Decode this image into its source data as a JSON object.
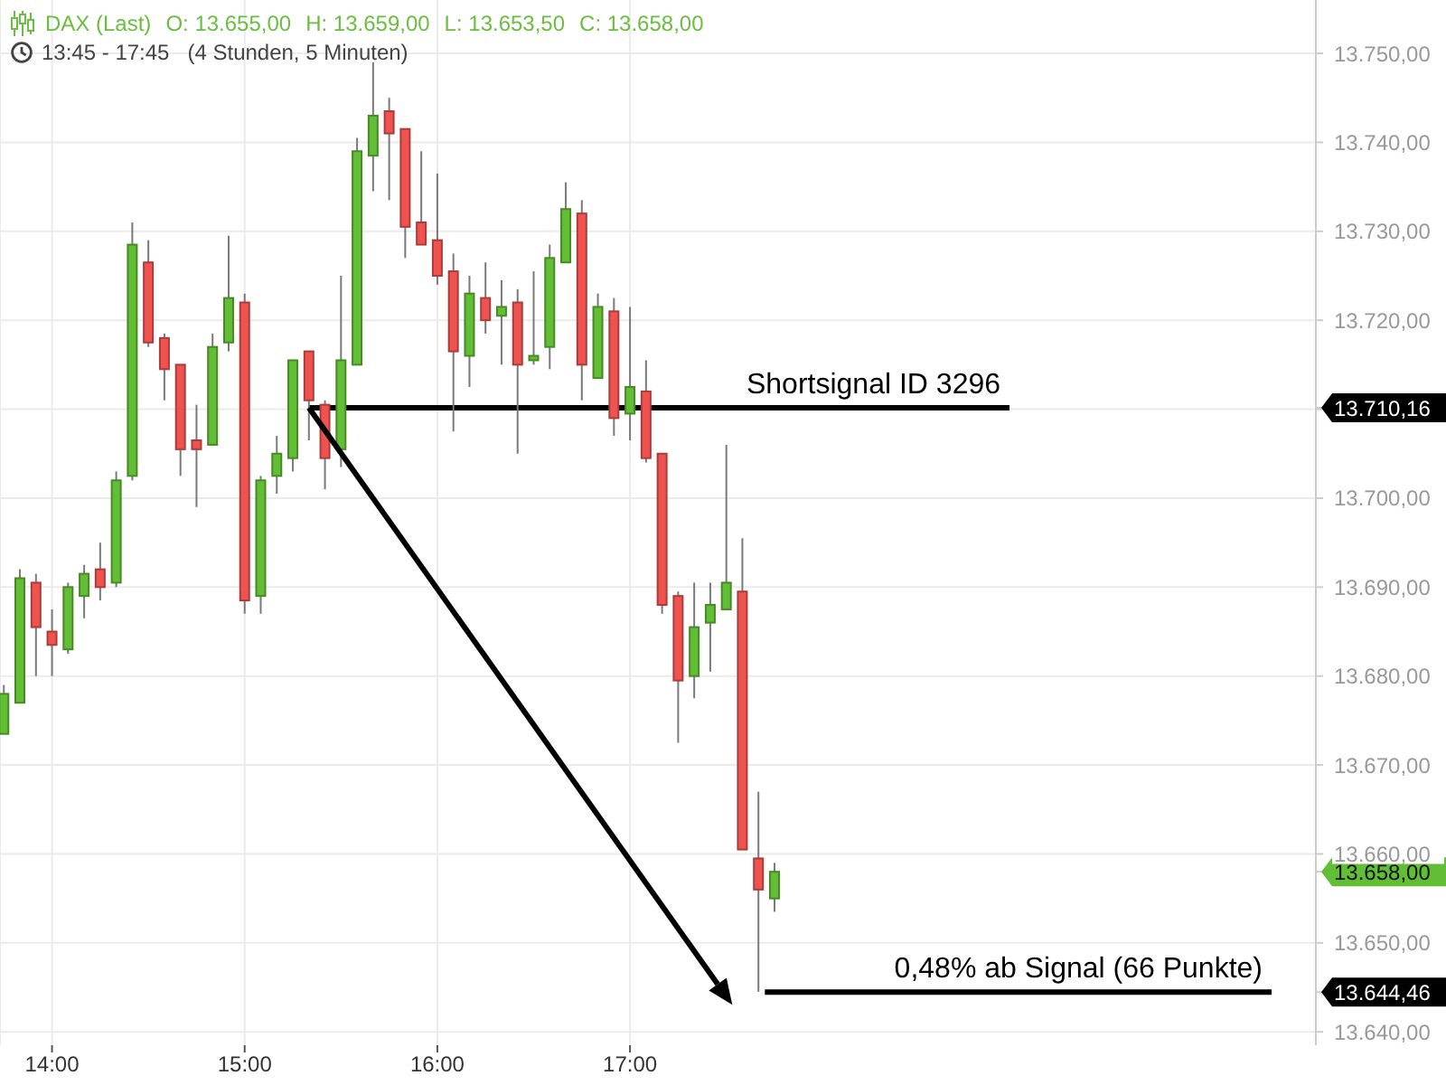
{
  "chart_data": {
    "type": "candlestick",
    "title": "DAX (Last)",
    "subtitle": "13:45 - 17:45   (4 Stunden, 5 Minuten)",
    "annotations": [
      "O: 13.655,00",
      "H: 13.659,00",
      "L: 13.653,50",
      "C: 13.658,00"
    ],
    "x": [
      13.75,
      13.8333,
      13.9167,
      14,
      14.0833,
      14.1667,
      14.25,
      14.3333,
      14.4167,
      14.5,
      14.5833,
      14.6667,
      14.75,
      14.8333,
      14.9167,
      15,
      15.0833,
      15.1667,
      15.25,
      15.3333,
      15.4167,
      15.5,
      15.5833,
      15.6667,
      15.75,
      15.8333,
      15.9167,
      16,
      16.0833,
      16.1667,
      16.25,
      16.3333,
      16.4167,
      16.5,
      16.5833,
      16.6667,
      16.75,
      16.8333,
      16.9167,
      17,
      17.0833,
      17.1667,
      17.25,
      17.3333,
      17.4167,
      17.5,
      17.5833,
      17.6667,
      17.75
    ],
    "ohlc": [
      [
        13673.5,
        13679,
        13673.5,
        13678
      ],
      [
        13677,
        13692,
        13677,
        13691
      ],
      [
        13690.5,
        13691.5,
        13680,
        13685.5
      ],
      [
        13685,
        13687.5,
        13680,
        13683.5
      ],
      [
        13683,
        13690.5,
        13682.5,
        13690
      ],
      [
        13689,
        13692.5,
        13686.5,
        13691.5
      ],
      [
        13692,
        13695,
        13688.5,
        13690
      ],
      [
        13690.5,
        13703,
        13690,
        13702
      ],
      [
        13702.5,
        13731,
        13702,
        13728.5
      ],
      [
        13726.5,
        13729,
        13717,
        13717.5
      ],
      [
        13718,
        13718.5,
        13711,
        13714.5
      ],
      [
        13715,
        13715,
        13702.5,
        13705.5
      ],
      [
        13706.5,
        13710.5,
        13699,
        13705.5
      ],
      [
        13706,
        13718.5,
        13706,
        13717
      ],
      [
        13717.5,
        13729.5,
        13716.5,
        13722.5
      ],
      [
        13722,
        13723,
        13687,
        13688.5
      ],
      [
        13689,
        13702.5,
        13687,
        13702
      ],
      [
        13702.5,
        13707,
        13700.5,
        13705
      ],
      [
        13704.5,
        13715.5,
        13703,
        13715.5
      ],
      [
        13716.5,
        13716.5,
        13706.5,
        13711
      ],
      [
        13710.5,
        13711,
        13701,
        13704.5
      ],
      [
        13705.5,
        13725,
        13703.5,
        13715.5
      ],
      [
        13715,
        13740.5,
        13715,
        13739
      ],
      [
        13738.5,
        13749,
        13734.5,
        13743
      ],
      [
        13743.5,
        13745,
        13733.5,
        13741
      ],
      [
        13741.5,
        13741.5,
        13727,
        13730.5
      ],
      [
        13731,
        13739,
        13728.5,
        13728.5
      ],
      [
        13729,
        13736.5,
        13724,
        13725
      ],
      [
        13725.5,
        13727.5,
        13707.5,
        13716.5
      ],
      [
        13716,
        13725,
        13712.5,
        13723
      ],
      [
        13722.5,
        13726.5,
        13718.5,
        13720
      ],
      [
        13720.5,
        13724.5,
        13715,
        13721.5
      ],
      [
        13722,
        13723.5,
        13705,
        13715
      ],
      [
        13715.5,
        13725.5,
        13715,
        13716
      ],
      [
        13717,
        13728.5,
        13714.5,
        13727
      ],
      [
        13726.5,
        13735.5,
        13726.5,
        13732.5
      ],
      [
        13732,
        13733.5,
        13711,
        13715
      ],
      [
        13713.5,
        13723,
        13713.5,
        13721.5
      ],
      [
        13721,
        13722.5,
        13707,
        13709
      ],
      [
        13709.5,
        13721.5,
        13706.5,
        13712.5
      ],
      [
        13712,
        13715.5,
        13704,
        13704.5
      ],
      [
        13705,
        13705,
        13687,
        13688
      ],
      [
        13689,
        13689.5,
        13672.5,
        13679.5
      ],
      [
        13680,
        13690.5,
        13677.5,
        13685.5
      ],
      [
        13686,
        13690.5,
        13680.5,
        13688
      ],
      [
        13687.5,
        13706,
        13687.5,
        13690.5
      ],
      [
        13689.5,
        13695.5,
        13660.5,
        13660.5
      ],
      [
        13659.5,
        13667,
        13644.5,
        13656
      ],
      [
        13655,
        13659,
        13653.5,
        13658
      ]
    ],
    "colors": [
      "#62bf35",
      "#62bf35",
      "#ef5350",
      "#ef5350",
      "#62bf35",
      "#62bf35",
      "#ef5350",
      "#62bf35",
      "#62bf35",
      "#ef5350",
      "#ef5350",
      "#ef5350",
      "#ef5350",
      "#62bf35",
      "#62bf35",
      "#ef5350",
      "#62bf35",
      "#62bf35",
      "#62bf35",
      "#ef5350",
      "#ef5350",
      "#62bf35",
      "#62bf35",
      "#62bf35",
      "#ef5350",
      "#ef5350",
      "#ef5350",
      "#ef5350",
      "#ef5350",
      "#62bf35",
      "#ef5350",
      "#62bf35",
      "#ef5350",
      "#62bf35",
      "#62bf35",
      "#62bf35",
      "#ef5350",
      "#62bf35",
      "#ef5350",
      "#62bf35",
      "#ef5350",
      "#ef5350",
      "#ef5350",
      "#62bf35",
      "#62bf35",
      "#62bf35",
      "#ef5350",
      "#ef5350",
      "#62bf35"
    ],
    "series": [
      {
        "type": "line",
        "name": "Shortsignal ID 3296",
        "color": "#000000",
        "x": [
          15.3333,
          18.97
        ],
        "values": [
          13710.16,
          13710.16
        ]
      },
      {
        "type": "line",
        "name": "0,48% ab Signal (66 Punkte)",
        "color": "#000000",
        "x": [
          17.7,
          20.33
        ],
        "values": [
          13644.46,
          13644.46
        ]
      }
    ],
    "xlim": [
      13.73,
      20.56
    ],
    "xticks": [
      {
        "value": 14,
        "label": "14:00"
      },
      {
        "value": 15,
        "label": "15:00"
      },
      {
        "value": 16,
        "label": "16:00"
      },
      {
        "value": 17,
        "label": "17:00"
      }
    ],
    "ylim": [
      13638.5,
      13756
    ],
    "yticks": [
      {
        "value": 13640,
        "label": "13.640,00"
      },
      {
        "value": 13644.46,
        "label": "13.644,46"
      },
      {
        "value": 13650,
        "label": "13.650,00"
      },
      {
        "value": 13658,
        "label": "13.658,00"
      },
      {
        "value": 13660,
        "label": "13.660,00"
      },
      {
        "value": 13670,
        "label": "13.670,00"
      },
      {
        "value": 13680,
        "label": "13.680,00"
      },
      {
        "value": 13690,
        "label": "13.690,00"
      },
      {
        "value": 13700,
        "label": "13.700,00"
      },
      {
        "value": 13710,
        "label": null
      },
      {
        "value": 13710.16,
        "label": "13.710,16"
      },
      {
        "value": 13720,
        "label": "13.720,00"
      },
      {
        "value": 13730,
        "label": "13.730,00"
      },
      {
        "value": 13740,
        "label": "13.740,00"
      },
      {
        "value": 13750,
        "label": "13.750,00"
      }
    ],
    "grid": true
  }
}
